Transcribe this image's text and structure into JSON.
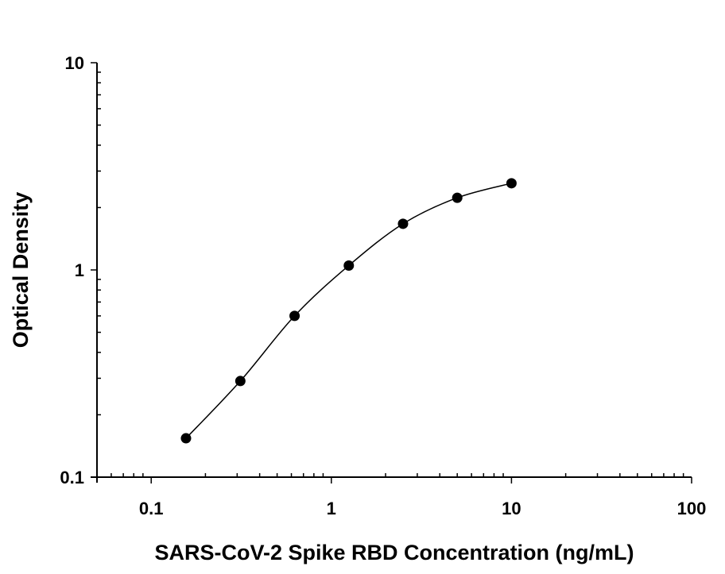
{
  "chart_data": {
    "type": "scatter",
    "title": "",
    "xlabel": "SARS-CoV-2 Spike RBD Concentration (ng/mL)",
    "ylabel": "Optical Density",
    "xscale": "log",
    "yscale": "log",
    "xlim": [
      0.05,
      100
    ],
    "ylim": [
      0.1,
      10
    ],
    "xticks": [
      {
        "value": 0.1,
        "label": "0.1"
      },
      {
        "value": 1,
        "label": "1"
      },
      {
        "value": 10,
        "label": "10"
      },
      {
        "value": 100,
        "label": "100"
      }
    ],
    "yticks": [
      {
        "value": 0.1,
        "label": "0.1"
      },
      {
        "value": 1,
        "label": "1"
      },
      {
        "value": 10,
        "label": "10"
      }
    ],
    "grid": false,
    "fit_curve": true,
    "series": [
      {
        "x": [
          0.156,
          0.3125,
          0.625,
          1.25,
          2.5,
          5,
          10
        ],
        "y": [
          0.154,
          0.291,
          0.6,
          1.05,
          1.67,
          2.23,
          2.62
        ]
      }
    ],
    "colors": {
      "marker": "#000000",
      "line": "#000000"
    }
  }
}
